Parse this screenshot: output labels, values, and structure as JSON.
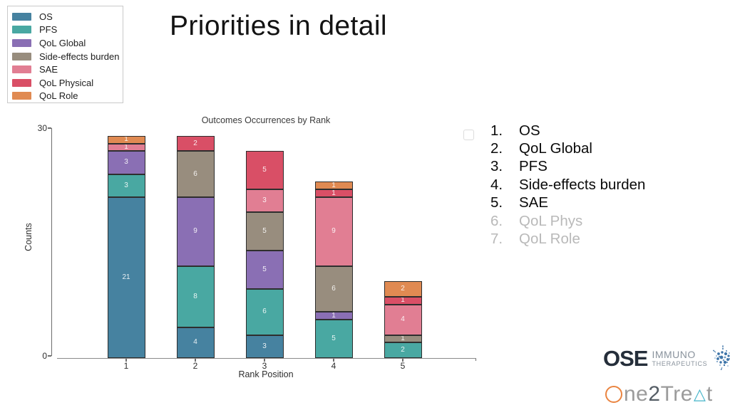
{
  "slide": {
    "title": "Priorities in detail"
  },
  "legend": {
    "items": [
      {
        "label": "OS",
        "color": "#4682a0"
      },
      {
        "label": "PFS",
        "color": "#49a8a2"
      },
      {
        "label": "QoL Global",
        "color": "#8a6fb4"
      },
      {
        "label": "Side-effects burden",
        "color": "#988d7e"
      },
      {
        "label": "SAE",
        "color": "#e17e93"
      },
      {
        "label": "QoL Physical",
        "color": "#d94f66"
      },
      {
        "label": "QoL Role",
        "color": "#e08a52"
      }
    ]
  },
  "chart_data": {
    "type": "bar",
    "stacked": true,
    "title": "Outcomes Occurrences by Rank",
    "xlabel": "Rank Position",
    "ylabel": "Counts",
    "ylim": [
      0,
      30
    ],
    "yticks": [
      0,
      30
    ],
    "grid": false,
    "categories": [
      "1",
      "2",
      "3",
      "4",
      "5"
    ],
    "series": [
      {
        "name": "OS",
        "color": "#4682a0",
        "values": [
          21,
          4,
          3,
          0,
          0
        ]
      },
      {
        "name": "PFS",
        "color": "#49a8a2",
        "values": [
          3,
          8,
          6,
          5,
          2
        ]
      },
      {
        "name": "QoL Global",
        "color": "#8a6fb4",
        "values": [
          3,
          9,
          5,
          1,
          0
        ]
      },
      {
        "name": "Side-effects burden",
        "color": "#988d7e",
        "values": [
          0,
          6,
          5,
          6,
          1
        ]
      },
      {
        "name": "SAE",
        "color": "#e17e93",
        "values": [
          1,
          0,
          3,
          9,
          4
        ]
      },
      {
        "name": "QoL Physical",
        "color": "#d94f66",
        "values": [
          0,
          2,
          5,
          1,
          1
        ]
      },
      {
        "name": "QoL Role",
        "color": "#e08a52",
        "values": [
          1,
          0,
          0,
          1,
          2
        ]
      }
    ]
  },
  "priority_list": {
    "items": [
      {
        "num": "1.",
        "label": "OS",
        "muted": false
      },
      {
        "num": "2.",
        "label": "QoL Global",
        "muted": false
      },
      {
        "num": "3.",
        "label": "PFS",
        "muted": false
      },
      {
        "num": "4.",
        "label": "Side-effects burden",
        "muted": false
      },
      {
        "num": "5.",
        "label": "SAE",
        "muted": false
      },
      {
        "num": "6.",
        "label": "QoL Phys",
        "muted": true
      },
      {
        "num": "7.",
        "label": "QoL Role",
        "muted": true
      }
    ]
  },
  "logos": {
    "ose": {
      "word": "OSE",
      "line1": "IMMUNO",
      "line2": "THERAPEUTICS"
    },
    "one2treat": {
      "text": "One2Treat",
      "part_ne": "ne",
      "part_two": "2",
      "part_tre": "Tre",
      "triangle_char": "△",
      "part_t": "t"
    }
  }
}
